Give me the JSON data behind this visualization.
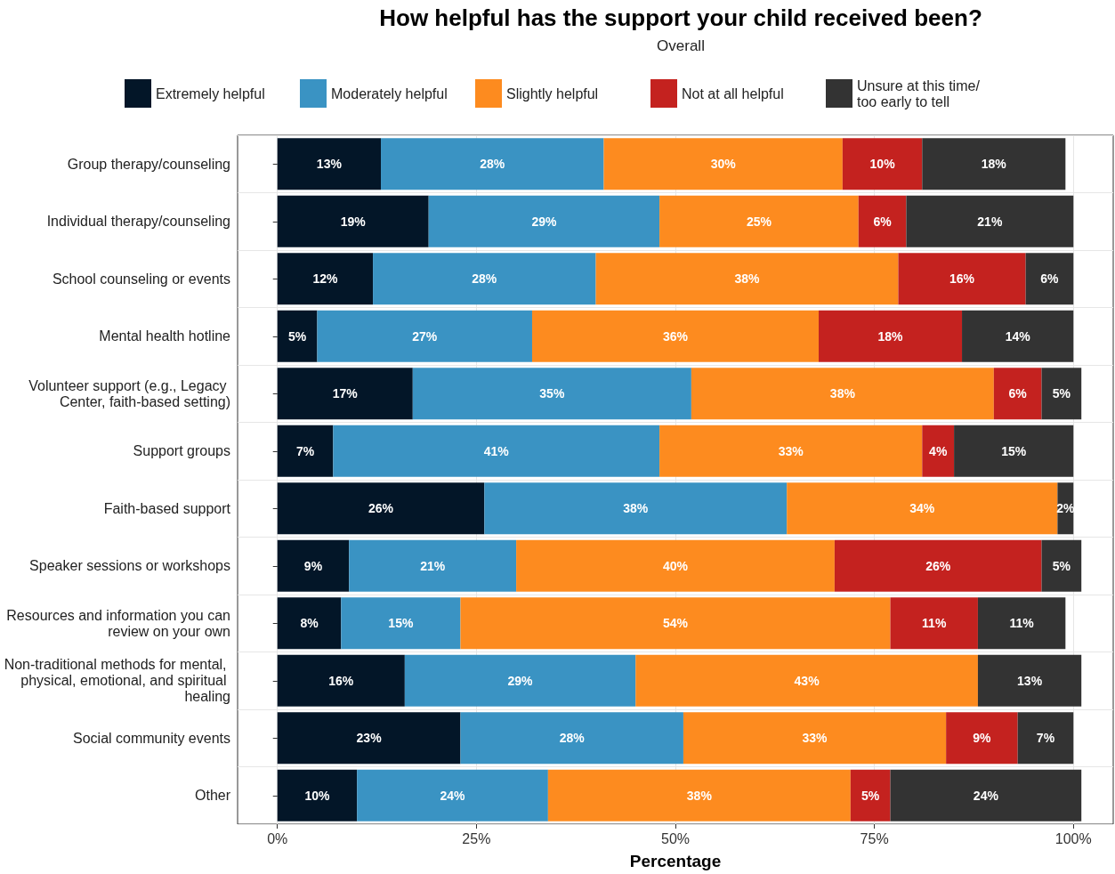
{
  "chart_data": {
    "type": "bar",
    "orientation": "horizontal",
    "stacked": true,
    "title": "How helpful has the support your child received been?",
    "subtitle": "Overall",
    "xlabel": "Percentage",
    "categories": [
      "Group therapy/counseling",
      "Individual therapy/counseling",
      "School counseling or events",
      "Mental health hotline",
      "Volunteer support (e.g., Legacy Center, faith-based setting)",
      "Support groups",
      "Faith-based support",
      "Speaker sessions or workshops",
      "Resources and information you can review on your own",
      "Non-traditional methods for mental, physical, emotional, and spiritual healing",
      "Social community events",
      "Other"
    ],
    "series": [
      {
        "name": "Extremely helpful",
        "color": "#031628",
        "values": [
          13,
          19,
          12,
          5,
          17,
          7,
          26,
          9,
          8,
          16,
          23,
          10
        ],
        "value_labels": [
          "13%",
          "19%",
          "12%",
          "5%",
          "17%",
          "7%",
          "26%",
          "9%",
          "8%",
          "16%",
          "23%",
          "10%"
        ]
      },
      {
        "name": "Moderately helpful",
        "color": "#3a93c3",
        "values": [
          28,
          29,
          28,
          27,
          35,
          41,
          38,
          21,
          15,
          29,
          28,
          24
        ],
        "value_labels": [
          "28%",
          "29%",
          "28%",
          "27%",
          "35%",
          "41%",
          "38%",
          "21%",
          "15%",
          "29%",
          "28%",
          "24%"
        ]
      },
      {
        "name": "Slightly helpful",
        "color": "#fd8b1f",
        "values": [
          30,
          25,
          38,
          36,
          38,
          33,
          34,
          40,
          54,
          43,
          33,
          38
        ],
        "value_labels": [
          "30%",
          "25%",
          "38%",
          "36%",
          "38%",
          "33%",
          "34%",
          "40%",
          "54%",
          "43%",
          "33%",
          "38%"
        ]
      },
      {
        "name": "Not at all helpful",
        "color": "#c4221f",
        "values": [
          10,
          6,
          16,
          18,
          6,
          4,
          null,
          26,
          11,
          null,
          9,
          5
        ],
        "value_labels": [
          "10%",
          "6%",
          "16%",
          "18%",
          "6%",
          "4%",
          null,
          "26%",
          "11%",
          null,
          "9%",
          "5%"
        ]
      },
      {
        "name": "Unsure at this time/ too early to tell",
        "color": "#333333",
        "values": [
          18,
          21,
          6,
          14,
          5,
          15,
          2,
          5,
          11,
          13,
          7,
          24
        ],
        "value_labels": [
          "18%",
          "21%",
          "6%",
          "14%",
          "5%",
          "15%",
          "2%",
          "5%",
          "11%",
          "13%",
          "7%",
          "24%"
        ]
      }
    ],
    "xlim": [
      -5,
      105
    ],
    "xticks": [
      {
        "value": 0,
        "label": "0%"
      },
      {
        "value": 25,
        "label": "25%"
      },
      {
        "value": 50,
        "label": "50%"
      },
      {
        "value": 75,
        "label": "75%"
      },
      {
        "value": 100,
        "label": "100%"
      }
    ],
    "grid": true,
    "legend": "top"
  }
}
